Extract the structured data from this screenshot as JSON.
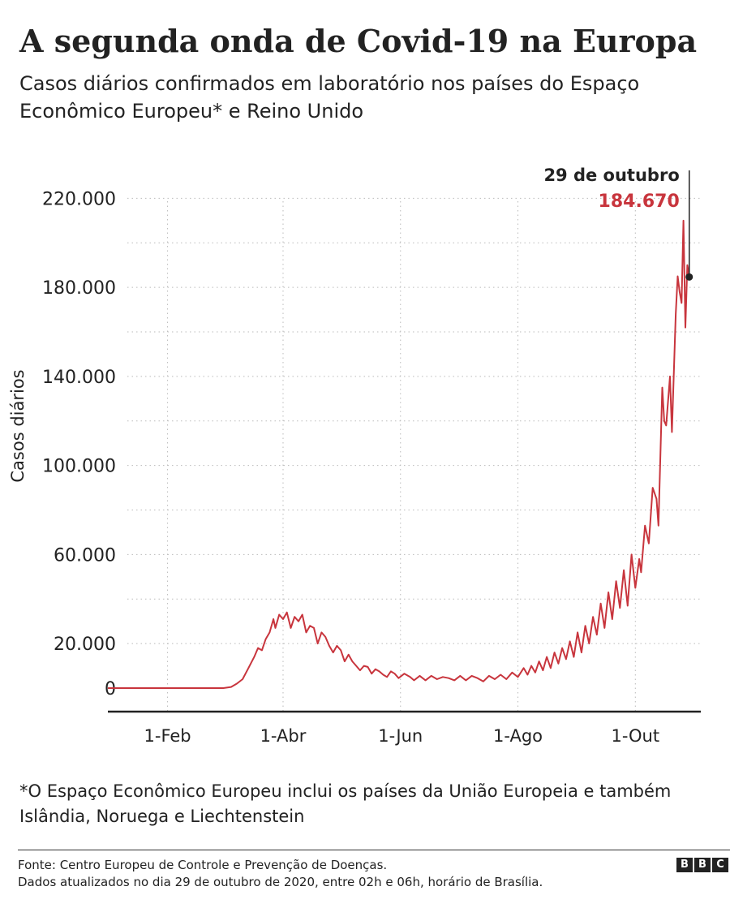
{
  "title": "A segunda onda de Covid-19 na Europa",
  "subtitle": "Casos diários confirmados em laboratório nos países do Espaço Econômico Europeu* e Reino Unido",
  "footnote": "*O Espaço Econômico Europeu inclui os países da União Europeia e também Islândia, Noruega e Liechtenstein",
  "source": "Fonte: Centro Europeu de Controle e Prevenção de Doenças.",
  "updated": "Dados atualizados no dia 29 de outubro de 2020, entre 02h e 06h, horário de Brasília.",
  "logo": [
    "B",
    "B",
    "C"
  ],
  "colors": {
    "line": "#c8353d",
    "text": "#222222",
    "grid": "#bbbbbb"
  },
  "chart_data": {
    "type": "line",
    "ylabel": "Casos diários",
    "xlabel": "",
    "ylim": [
      0,
      230000
    ],
    "yticks": [
      0,
      20000,
      60000,
      100000,
      140000,
      180000,
      220000
    ],
    "ytick_labels": [
      "0",
      "20.000",
      "60.000",
      "100.000",
      "140.000",
      "180.000",
      "220.000"
    ],
    "xtick_labels": [
      "1-Feb",
      "1-Abr",
      "1-Jun",
      "1-Ago",
      "1-Out"
    ],
    "xticks": [
      "2020-02-01",
      "2020-04-01",
      "2020-06-01",
      "2020-08-01",
      "2020-10-01"
    ],
    "xlim": [
      "2020-01-01",
      "2020-11-04"
    ],
    "grid": "horizontal dotted",
    "annotation": {
      "date": "2020-10-29",
      "label": "29 de outubro",
      "value": 184670,
      "value_label": "184.670"
    },
    "series": [
      {
        "values": [
          [
            "2020-01-01",
            0
          ],
          [
            "2020-02-01",
            0
          ],
          [
            "2020-03-01",
            0
          ],
          [
            "2020-03-05",
            500
          ],
          [
            "2020-03-08",
            2000
          ],
          [
            "2020-03-11",
            4000
          ],
          [
            "2020-03-14",
            9000
          ],
          [
            "2020-03-17",
            14000
          ],
          [
            "2020-03-19",
            18000
          ],
          [
            "2020-03-21",
            17000
          ],
          [
            "2020-03-23",
            22000
          ],
          [
            "2020-03-25",
            25000
          ],
          [
            "2020-03-27",
            31000
          ],
          [
            "2020-03-28",
            27000
          ],
          [
            "2020-03-30",
            33000
          ],
          [
            "2020-04-01",
            31000
          ],
          [
            "2020-04-03",
            34000
          ],
          [
            "2020-04-05",
            27000
          ],
          [
            "2020-04-07",
            32000
          ],
          [
            "2020-04-09",
            30000
          ],
          [
            "2020-04-11",
            33000
          ],
          [
            "2020-04-13",
            25000
          ],
          [
            "2020-04-15",
            28000
          ],
          [
            "2020-04-17",
            27000
          ],
          [
            "2020-04-19",
            20000
          ],
          [
            "2020-04-21",
            25000
          ],
          [
            "2020-04-23",
            23000
          ],
          [
            "2020-04-25",
            19000
          ],
          [
            "2020-04-27",
            16000
          ],
          [
            "2020-04-29",
            19000
          ],
          [
            "2020-05-01",
            17000
          ],
          [
            "2020-05-03",
            12000
          ],
          [
            "2020-05-05",
            15000
          ],
          [
            "2020-05-07",
            12000
          ],
          [
            "2020-05-09",
            10000
          ],
          [
            "2020-05-11",
            8000
          ],
          [
            "2020-05-13",
            10000
          ],
          [
            "2020-05-15",
            9500
          ],
          [
            "2020-05-17",
            6500
          ],
          [
            "2020-05-19",
            8500
          ],
          [
            "2020-05-21",
            7500
          ],
          [
            "2020-05-23",
            6000
          ],
          [
            "2020-05-25",
            5000
          ],
          [
            "2020-05-27",
            7500
          ],
          [
            "2020-05-29",
            6500
          ],
          [
            "2020-05-31",
            4500
          ],
          [
            "2020-06-03",
            6500
          ],
          [
            "2020-06-06",
            5000
          ],
          [
            "2020-06-08",
            3500
          ],
          [
            "2020-06-11",
            5500
          ],
          [
            "2020-06-14",
            3500
          ],
          [
            "2020-06-17",
            5500
          ],
          [
            "2020-06-20",
            4000
          ],
          [
            "2020-06-23",
            5000
          ],
          [
            "2020-06-26",
            4500
          ],
          [
            "2020-06-29",
            3500
          ],
          [
            "2020-07-02",
            5500
          ],
          [
            "2020-07-05",
            3500
          ],
          [
            "2020-07-08",
            5500
          ],
          [
            "2020-07-11",
            4500
          ],
          [
            "2020-07-14",
            3000
          ],
          [
            "2020-07-17",
            5500
          ],
          [
            "2020-07-20",
            4000
          ],
          [
            "2020-07-23",
            6000
          ],
          [
            "2020-07-26",
            4000
          ],
          [
            "2020-07-29",
            7000
          ],
          [
            "2020-08-01",
            5000
          ],
          [
            "2020-08-04",
            9000
          ],
          [
            "2020-08-06",
            6000
          ],
          [
            "2020-08-08",
            10000
          ],
          [
            "2020-08-10",
            7000
          ],
          [
            "2020-08-12",
            12000
          ],
          [
            "2020-08-14",
            8000
          ],
          [
            "2020-08-16",
            14000
          ],
          [
            "2020-08-18",
            9000
          ],
          [
            "2020-08-20",
            16000
          ],
          [
            "2020-08-22",
            11000
          ],
          [
            "2020-08-24",
            18000
          ],
          [
            "2020-08-26",
            13000
          ],
          [
            "2020-08-28",
            21000
          ],
          [
            "2020-08-30",
            14000
          ],
          [
            "2020-09-01",
            25000
          ],
          [
            "2020-09-03",
            16000
          ],
          [
            "2020-09-05",
            28000
          ],
          [
            "2020-09-07",
            20000
          ],
          [
            "2020-09-09",
            32000
          ],
          [
            "2020-09-11",
            24000
          ],
          [
            "2020-09-13",
            38000
          ],
          [
            "2020-09-15",
            27000
          ],
          [
            "2020-09-17",
            43000
          ],
          [
            "2020-09-19",
            31000
          ],
          [
            "2020-09-21",
            48000
          ],
          [
            "2020-09-23",
            36000
          ],
          [
            "2020-09-25",
            53000
          ],
          [
            "2020-09-27",
            37000
          ],
          [
            "2020-09-29",
            60000
          ],
          [
            "2020-10-01",
            45000
          ],
          [
            "2020-10-03",
            58000
          ],
          [
            "2020-10-04",
            52000
          ],
          [
            "2020-10-06",
            73000
          ],
          [
            "2020-10-08",
            65000
          ],
          [
            "2020-10-10",
            90000
          ],
          [
            "2020-10-12",
            85000
          ],
          [
            "2020-10-13",
            73000
          ],
          [
            "2020-10-15",
            135000
          ],
          [
            "2020-10-16",
            120000
          ],
          [
            "2020-10-17",
            118000
          ],
          [
            "2020-10-19",
            140000
          ],
          [
            "2020-10-20",
            115000
          ],
          [
            "2020-10-22",
            168000
          ],
          [
            "2020-10-23",
            185000
          ],
          [
            "2020-10-24",
            178000
          ],
          [
            "2020-10-25",
            173000
          ],
          [
            "2020-10-26",
            210000
          ],
          [
            "2020-10-27",
            162000
          ],
          [
            "2020-10-28",
            190000
          ],
          [
            "2020-10-29",
            184670
          ]
        ]
      }
    ]
  }
}
